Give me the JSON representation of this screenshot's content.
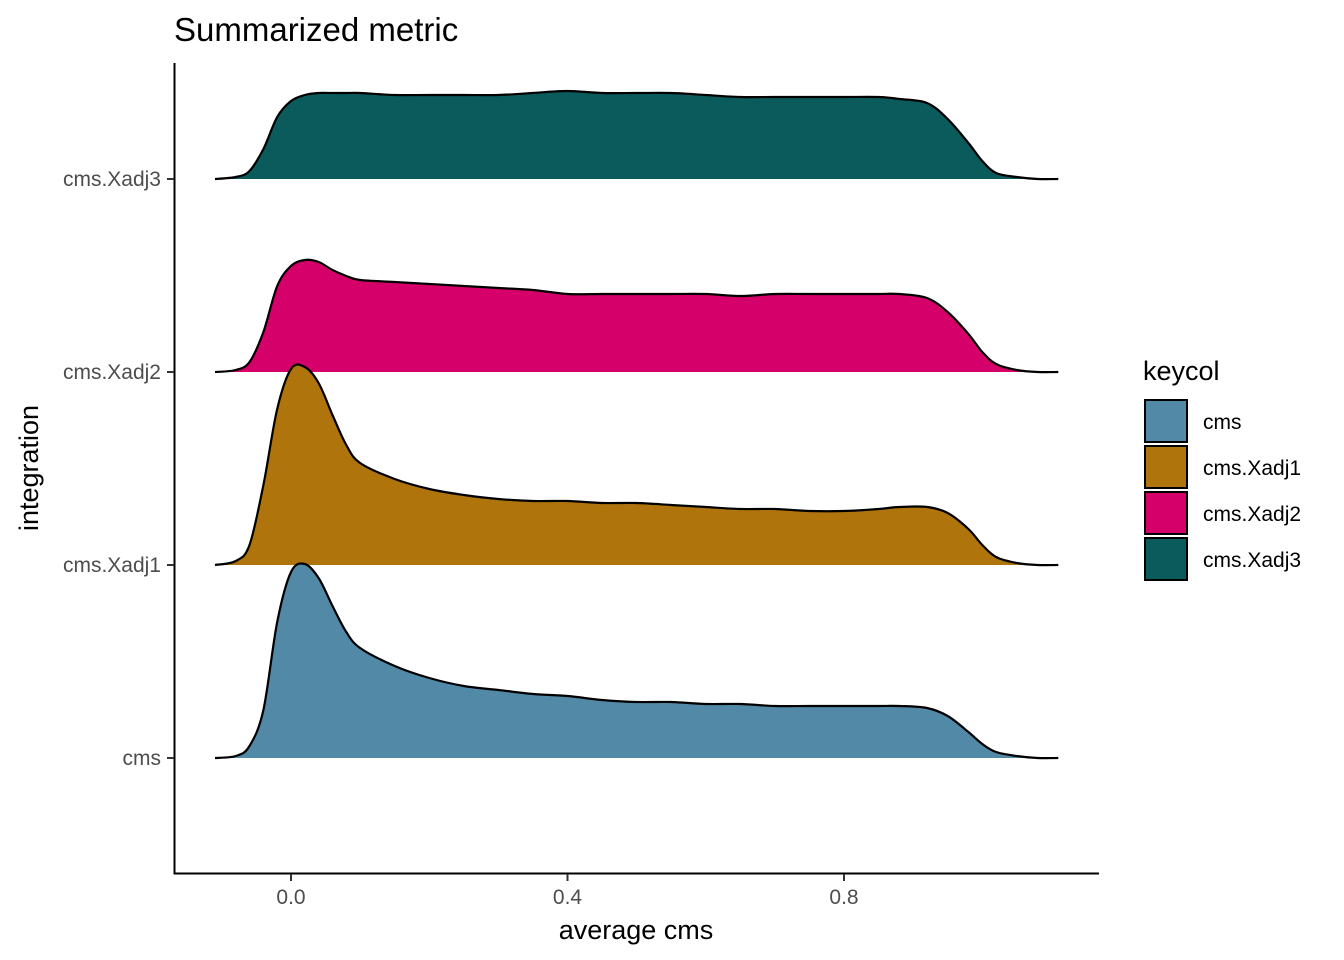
{
  "chart_data": {
    "type": "ridgeline",
    "title": "Summarized metric",
    "xlabel": "average cms",
    "ylabel": "integration",
    "xlim": [
      -0.17,
      1.17
    ],
    "x_ticks": [
      0.0,
      0.4,
      0.8
    ],
    "x_tick_labels": [
      "0.0",
      "0.4",
      "0.8"
    ],
    "categories": [
      "cms",
      "cms.Xadj1",
      "cms.Xadj2",
      "cms.Xadj3"
    ],
    "grid": false,
    "legend": {
      "title": "keycol",
      "placement": "right"
    },
    "x": [
      -0.11,
      -0.08,
      -0.06,
      -0.04,
      -0.02,
      0.0,
      0.02,
      0.04,
      0.06,
      0.08,
      0.1,
      0.15,
      0.2,
      0.25,
      0.3,
      0.35,
      0.4,
      0.45,
      0.5,
      0.55,
      0.6,
      0.65,
      0.7,
      0.75,
      0.8,
      0.85,
      0.88,
      0.92,
      0.95,
      0.98,
      1.0,
      1.02,
      1.05,
      1.08,
      1.11
    ],
    "series": [
      {
        "name": "cms",
        "color": "#5289A6",
        "density": [
          0.0,
          0.01,
          0.06,
          0.24,
          0.68,
          0.93,
          0.97,
          0.9,
          0.76,
          0.63,
          0.55,
          0.46,
          0.4,
          0.36,
          0.34,
          0.32,
          0.31,
          0.29,
          0.28,
          0.28,
          0.27,
          0.27,
          0.26,
          0.26,
          0.26,
          0.26,
          0.26,
          0.25,
          0.21,
          0.13,
          0.07,
          0.03,
          0.01,
          0.0,
          0.0
        ]
      },
      {
        "name": "cms.Xadj1",
        "color": "#B0740D",
        "density": [
          0.0,
          0.02,
          0.1,
          0.4,
          0.78,
          0.98,
          0.99,
          0.91,
          0.75,
          0.6,
          0.51,
          0.43,
          0.38,
          0.35,
          0.33,
          0.32,
          0.32,
          0.31,
          0.31,
          0.3,
          0.29,
          0.28,
          0.28,
          0.27,
          0.27,
          0.28,
          0.29,
          0.29,
          0.26,
          0.18,
          0.1,
          0.04,
          0.01,
          0.0,
          0.0
        ]
      },
      {
        "name": "cms.Xadj2",
        "color": "#D5006A",
        "density": [
          0.0,
          0.01,
          0.05,
          0.2,
          0.43,
          0.53,
          0.56,
          0.55,
          0.51,
          0.48,
          0.46,
          0.45,
          0.44,
          0.43,
          0.42,
          0.41,
          0.39,
          0.39,
          0.39,
          0.39,
          0.39,
          0.38,
          0.39,
          0.39,
          0.39,
          0.39,
          0.39,
          0.37,
          0.3,
          0.19,
          0.1,
          0.04,
          0.01,
          0.0,
          0.0
        ]
      },
      {
        "name": "cms.Xadj3",
        "color": "#0B5B5C",
        "density": [
          0.0,
          0.01,
          0.04,
          0.15,
          0.31,
          0.39,
          0.42,
          0.43,
          0.43,
          0.43,
          0.43,
          0.42,
          0.42,
          0.42,
          0.42,
          0.43,
          0.44,
          0.43,
          0.43,
          0.43,
          0.42,
          0.41,
          0.41,
          0.41,
          0.41,
          0.41,
          0.4,
          0.38,
          0.3,
          0.18,
          0.09,
          0.03,
          0.01,
          0.0,
          0.0
        ]
      }
    ]
  }
}
